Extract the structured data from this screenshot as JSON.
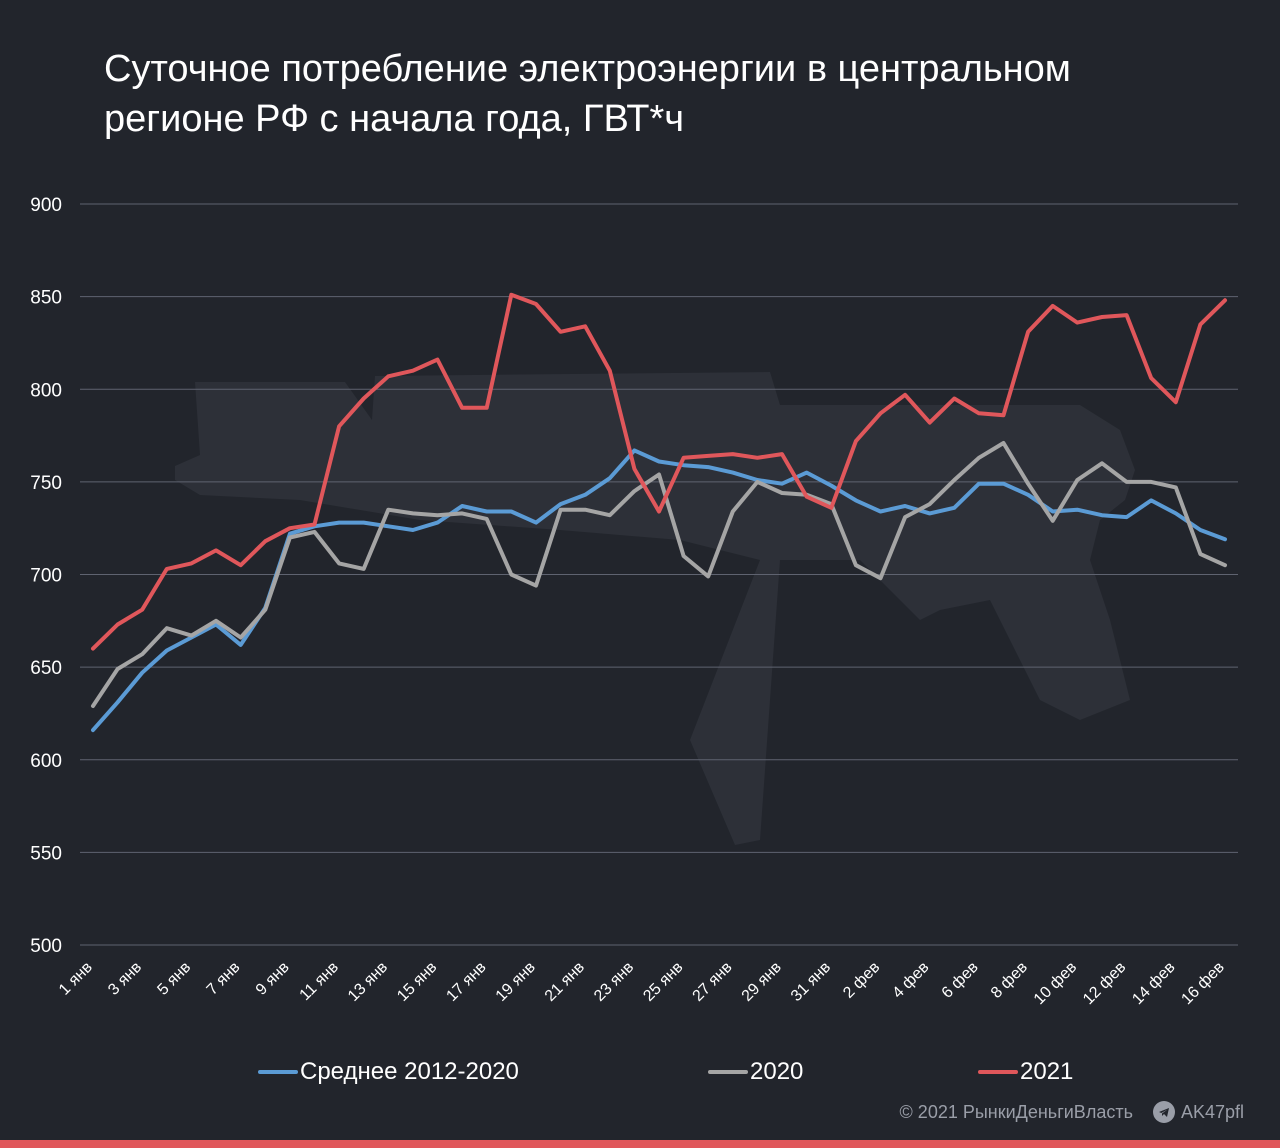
{
  "title": "Суточное потребление электроэнергии в центральном регионе РФ с начала года, ГВТ*ч",
  "footer": {
    "copyright": "© 2021  РынкиДеньгиВласть",
    "telegram": "AK47pfl",
    "telegram_icon": "telegram-icon"
  },
  "colors": {
    "background": "#22252c",
    "grid": "#5f6370",
    "avg": "#5b9bd5",
    "y2020": "#a5a5a5",
    "y2021": "#e0575b",
    "footer_bar": "#e0575b"
  },
  "chart_data": {
    "type": "line",
    "title": "Суточное потребление электроэнергии в центральном регионе РФ с начала года, ГВТ*ч",
    "xlabel": "",
    "ylabel": "",
    "ylim": [
      500,
      900
    ],
    "yticks": [
      500,
      550,
      600,
      650,
      700,
      750,
      800,
      850,
      900
    ],
    "grid": true,
    "legend_position": "bottom",
    "x": [
      "1 янв",
      "2 янв",
      "3 янв",
      "4 янв",
      "5 янв",
      "6 янв",
      "7 янв",
      "8 янв",
      "9 янв",
      "10 янв",
      "11 янв",
      "12 янв",
      "13 янв",
      "14 янв",
      "15 янв",
      "16 янв",
      "17 янв",
      "18 янв",
      "19 янв",
      "20 янв",
      "21 янв",
      "22 янв",
      "23 янв",
      "24 янв",
      "25 янв",
      "26 янв",
      "27 янв",
      "28 янв",
      "29 янв",
      "30 янв",
      "31 янв",
      "1 фев",
      "2 фев",
      "3 фев",
      "4 фев",
      "5 фев",
      "6 фев",
      "7 фев",
      "8 фев",
      "9 фев",
      "10 фев",
      "11 фев",
      "12 фев",
      "13 фев",
      "14 фев",
      "15 фев",
      "16 фев"
    ],
    "x_tick_labels": [
      "1 янв",
      "3 янв",
      "5 янв",
      "7 янв",
      "9 янв",
      "11 янв",
      "13 янв",
      "15 янв",
      "17 янв",
      "19 янв",
      "21 янв",
      "23 янв",
      "25 янв",
      "27 янв",
      "29 янв",
      "31 янв",
      "2 фев",
      "4 фев",
      "6 фев",
      "8 фев",
      "10 фев",
      "12 фев",
      "14 фев",
      "16 фев"
    ],
    "series": [
      {
        "name": "Среднее 2012-2020",
        "color": "#5b9bd5",
        "values": [
          616,
          631,
          647,
          659,
          666,
          673,
          662,
          682,
          722,
          726,
          728,
          728,
          726,
          724,
          728,
          737,
          734,
          734,
          728,
          738,
          743,
          752,
          767,
          761,
          759,
          758,
          755,
          751,
          749,
          755,
          748,
          740,
          734,
          737,
          733,
          736,
          749,
          749,
          743,
          734,
          735,
          732,
          731,
          740,
          733,
          724,
          719
        ]
      },
      {
        "name": "2020",
        "color": "#a5a5a5",
        "values": [
          629,
          649,
          657,
          671,
          667,
          675,
          666,
          681,
          720,
          723,
          706,
          703,
          735,
          733,
          732,
          733,
          730,
          700,
          694,
          735,
          735,
          732,
          745,
          754,
          710,
          699,
          734,
          750,
          744,
          743,
          738,
          705,
          698,
          731,
          738,
          751,
          763,
          771,
          749,
          729,
          751,
          760,
          750,
          750,
          747,
          711,
          705
        ]
      },
      {
        "name": "2021",
        "color": "#e0575b",
        "values": [
          660,
          673,
          681,
          703,
          706,
          713,
          705,
          718,
          725,
          727,
          780,
          795,
          807,
          810,
          816,
          790,
          790,
          851,
          846,
          831,
          834,
          810,
          757,
          734,
          763,
          764,
          765,
          763,
          765,
          742,
          736,
          772,
          787,
          797,
          782,
          795,
          787,
          786,
          831,
          845,
          836,
          839,
          840,
          806,
          793,
          835,
          848
        ]
      }
    ]
  }
}
